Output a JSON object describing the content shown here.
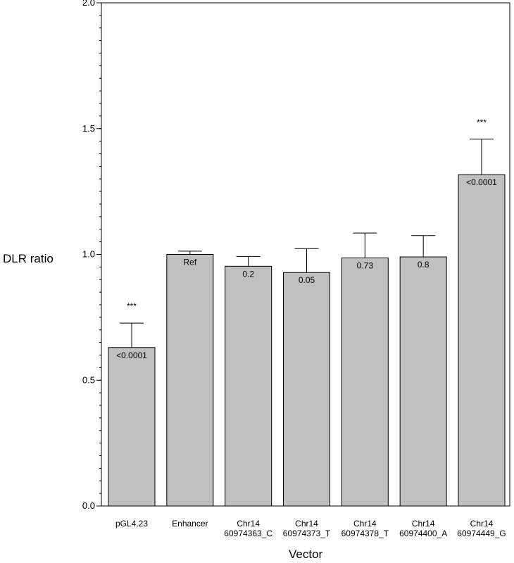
{
  "chart_data": {
    "type": "bar",
    "title": "",
    "xlabel": "Vector",
    "ylabel": "DLR ratio",
    "ylim": [
      0,
      2.0
    ],
    "yticks": [
      "0.0",
      "0.5",
      "1.0",
      "1.5",
      "2.0"
    ],
    "grid": false,
    "categories": [
      [
        "pGL4.23"
      ],
      [
        "Enhancer"
      ],
      [
        "Chr14",
        "60974363_C"
      ],
      [
        "Chr14",
        "60974373_T"
      ],
      [
        "Chr14",
        "60974378_T"
      ],
      [
        "Chr14",
        "60974400_A"
      ],
      [
        "Chr14",
        "60974449_G"
      ]
    ],
    "values": [
      0.63,
      1.0,
      0.953,
      0.928,
      0.986,
      0.99,
      1.317
    ],
    "error_upper": [
      0.727,
      1.013,
      0.992,
      1.023,
      1.085,
      1.075,
      1.458
    ],
    "bar_labels": [
      "<0.0001",
      "Ref",
      "0.2",
      "0.05",
      "0.73",
      "0.8",
      "<0.0001"
    ],
    "significance": [
      "***",
      "",
      "",
      "",
      "",
      "",
      "***"
    ],
    "colors": {
      "bar_fill": "#c0c0c0",
      "bar_stroke": "#000000",
      "axis": "#000000"
    }
  }
}
